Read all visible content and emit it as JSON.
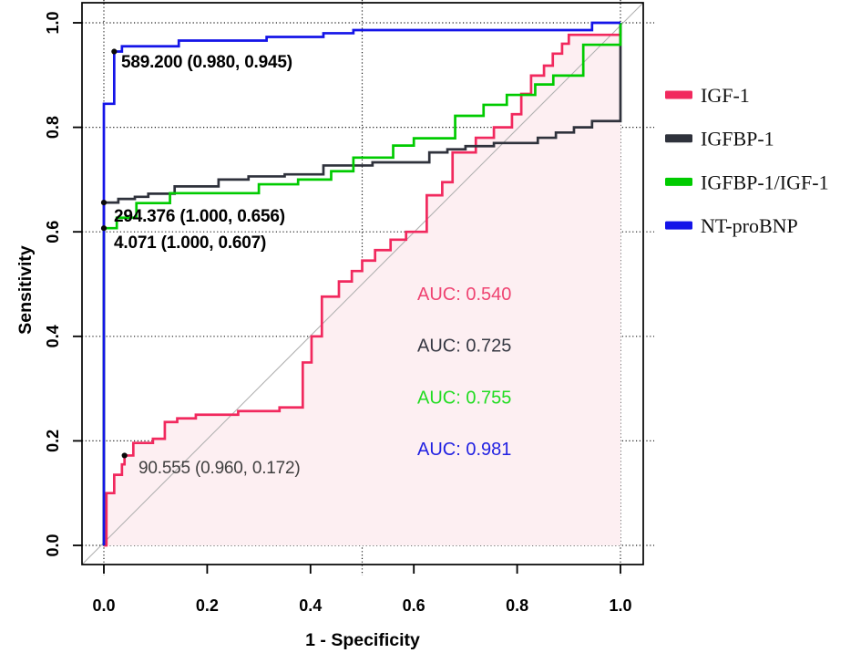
{
  "chart_data": {
    "type": "line",
    "subtype": "roc-step-curves",
    "title": "",
    "xlabel": "1 - Specificity",
    "ylabel": "Sensitivity",
    "xlim": [
      0,
      1
    ],
    "ylim": [
      0,
      1
    ],
    "x_ticks": [
      "0.0",
      "0.2",
      "0.4",
      "0.6",
      "0.8",
      "1.0"
    ],
    "y_ticks": [
      "0.0",
      "0.2",
      "0.4",
      "0.6",
      "0.8",
      "1.0"
    ],
    "grid": {
      "style": "dotted",
      "color": "#1a1a1a",
      "x_lines": [
        0,
        0.5,
        1.0
      ],
      "y_lines": [
        0,
        0.2,
        0.4,
        0.6,
        0.8,
        1.0
      ]
    },
    "diagonal_reference": {
      "present": true,
      "color": "#b0b0b0"
    },
    "fill_under_series": {
      "series": "IGF-1",
      "color": "#fdeff2"
    },
    "series": [
      {
        "name": "IGF-1",
        "color": "#f1295e",
        "auc": 0.54,
        "auc_label": "AUC: 0.540",
        "auc_label_color": "#ef4472",
        "points": [
          [
            0,
            0
          ],
          [
            0.005,
            0
          ],
          [
            0.005,
            0.1
          ],
          [
            0.02,
            0.1
          ],
          [
            0.02,
            0.135
          ],
          [
            0.035,
            0.135
          ],
          [
            0.035,
            0.155
          ],
          [
            0.04,
            0.155
          ],
          [
            0.04,
            0.172
          ],
          [
            0.057,
            0.172
          ],
          [
            0.057,
            0.196
          ],
          [
            0.095,
            0.196
          ],
          [
            0.095,
            0.204
          ],
          [
            0.118,
            0.204
          ],
          [
            0.118,
            0.236
          ],
          [
            0.142,
            0.236
          ],
          [
            0.142,
            0.243
          ],
          [
            0.178,
            0.243
          ],
          [
            0.178,
            0.25
          ],
          [
            0.26,
            0.25
          ],
          [
            0.26,
            0.257
          ],
          [
            0.34,
            0.257
          ],
          [
            0.34,
            0.264
          ],
          [
            0.385,
            0.264
          ],
          [
            0.385,
            0.35
          ],
          [
            0.402,
            0.35
          ],
          [
            0.402,
            0.4
          ],
          [
            0.422,
            0.4
          ],
          [
            0.422,
            0.476
          ],
          [
            0.455,
            0.476
          ],
          [
            0.455,
            0.505
          ],
          [
            0.48,
            0.505
          ],
          [
            0.48,
            0.525
          ],
          [
            0.5,
            0.525
          ],
          [
            0.5,
            0.545
          ],
          [
            0.525,
            0.545
          ],
          [
            0.525,
            0.565
          ],
          [
            0.555,
            0.565
          ],
          [
            0.555,
            0.585
          ],
          [
            0.585,
            0.585
          ],
          [
            0.585,
            0.6
          ],
          [
            0.625,
            0.6
          ],
          [
            0.625,
            0.67
          ],
          [
            0.655,
            0.67
          ],
          [
            0.655,
            0.695
          ],
          [
            0.675,
            0.695
          ],
          [
            0.675,
            0.752
          ],
          [
            0.72,
            0.752
          ],
          [
            0.72,
            0.78
          ],
          [
            0.755,
            0.78
          ],
          [
            0.755,
            0.8
          ],
          [
            0.79,
            0.8
          ],
          [
            0.79,
            0.825
          ],
          [
            0.808,
            0.825
          ],
          [
            0.808,
            0.864
          ],
          [
            0.827,
            0.864
          ],
          [
            0.827,
            0.899
          ],
          [
            0.852,
            0.899
          ],
          [
            0.852,
            0.918
          ],
          [
            0.869,
            0.918
          ],
          [
            0.869,
            0.941
          ],
          [
            0.887,
            0.941
          ],
          [
            0.887,
            0.96
          ],
          [
            0.9,
            0.96
          ],
          [
            0.9,
            0.977
          ],
          [
            1.0,
            0.977
          ],
          [
            1.0,
            1.0
          ]
        ]
      },
      {
        "name": "IGFBP-1",
        "color": "#2f323c",
        "auc": 0.725,
        "auc_label": "AUC: 0.725",
        "auc_label_color": "#363843",
        "points": [
          [
            0,
            0
          ],
          [
            0,
            0.656
          ],
          [
            0.028,
            0.656
          ],
          [
            0.028,
            0.663
          ],
          [
            0.06,
            0.663
          ],
          [
            0.06,
            0.667
          ],
          [
            0.086,
            0.667
          ],
          [
            0.086,
            0.673
          ],
          [
            0.137,
            0.673
          ],
          [
            0.137,
            0.687
          ],
          [
            0.222,
            0.687
          ],
          [
            0.222,
            0.7
          ],
          [
            0.28,
            0.7
          ],
          [
            0.28,
            0.706
          ],
          [
            0.35,
            0.706
          ],
          [
            0.35,
            0.71
          ],
          [
            0.425,
            0.71
          ],
          [
            0.425,
            0.727
          ],
          [
            0.52,
            0.727
          ],
          [
            0.52,
            0.733
          ],
          [
            0.63,
            0.733
          ],
          [
            0.63,
            0.752
          ],
          [
            0.665,
            0.752
          ],
          [
            0.665,
            0.758
          ],
          [
            0.7,
            0.758
          ],
          [
            0.7,
            0.764
          ],
          [
            0.755,
            0.764
          ],
          [
            0.755,
            0.77
          ],
          [
            0.84,
            0.77
          ],
          [
            0.84,
            0.78
          ],
          [
            0.875,
            0.78
          ],
          [
            0.875,
            0.79
          ],
          [
            0.91,
            0.79
          ],
          [
            0.91,
            0.8
          ],
          [
            0.945,
            0.8
          ],
          [
            0.945,
            0.812
          ],
          [
            1.0,
            0.812
          ],
          [
            1.0,
            1.0
          ]
        ]
      },
      {
        "name": "IGFBP-1/IGF-1",
        "color": "#00cb00",
        "auc": 0.755,
        "auc_label": "AUC: 0.755",
        "auc_label_color": "#21dc21",
        "points": [
          [
            0,
            0
          ],
          [
            0,
            0.607
          ],
          [
            0.025,
            0.607
          ],
          [
            0.025,
            0.627
          ],
          [
            0.063,
            0.627
          ],
          [
            0.063,
            0.655
          ],
          [
            0.128,
            0.655
          ],
          [
            0.128,
            0.674
          ],
          [
            0.3,
            0.674
          ],
          [
            0.3,
            0.691
          ],
          [
            0.376,
            0.691
          ],
          [
            0.376,
            0.7
          ],
          [
            0.44,
            0.7
          ],
          [
            0.44,
            0.716
          ],
          [
            0.483,
            0.716
          ],
          [
            0.483,
            0.742
          ],
          [
            0.56,
            0.742
          ],
          [
            0.56,
            0.765
          ],
          [
            0.6,
            0.765
          ],
          [
            0.6,
            0.779
          ],
          [
            0.68,
            0.779
          ],
          [
            0.68,
            0.822
          ],
          [
            0.735,
            0.822
          ],
          [
            0.735,
            0.843
          ],
          [
            0.78,
            0.843
          ],
          [
            0.78,
            0.862
          ],
          [
            0.835,
            0.862
          ],
          [
            0.835,
            0.882
          ],
          [
            0.87,
            0.882
          ],
          [
            0.87,
            0.899
          ],
          [
            0.928,
            0.899
          ],
          [
            0.928,
            0.958
          ],
          [
            1.0,
            0.958
          ],
          [
            1.0,
            1.0
          ]
        ]
      },
      {
        "name": "NT-proBNP",
        "color": "#1414e8",
        "auc": 0.981,
        "auc_label": "AUC: 0.981",
        "auc_label_color": "#2222e2",
        "points": [
          [
            0,
            0
          ],
          [
            0,
            0.845
          ],
          [
            0.02,
            0.845
          ],
          [
            0.02,
            0.945
          ],
          [
            0.035,
            0.945
          ],
          [
            0.035,
            0.955
          ],
          [
            0.145,
            0.955
          ],
          [
            0.145,
            0.966
          ],
          [
            0.315,
            0.966
          ],
          [
            0.315,
            0.973
          ],
          [
            0.425,
            0.973
          ],
          [
            0.425,
            0.98
          ],
          [
            0.483,
            0.98
          ],
          [
            0.483,
            0.986
          ],
          [
            0.945,
            0.986
          ],
          [
            0.945,
            1.0
          ],
          [
            1.0,
            1.0
          ]
        ]
      }
    ],
    "marked_points": [
      {
        "label": "589.200 (0.980, 0.945)",
        "x": 0.02,
        "y": 0.945,
        "series": "NT-proBNP",
        "text_color": "#000000",
        "bold": true
      },
      {
        "label": "294.376 (1.000, 0.656)",
        "x": 0.0,
        "y": 0.656,
        "series": "IGFBP-1",
        "text_color": "#000000",
        "bold": true
      },
      {
        "label": "4.071 (1.000, 0.607)",
        "x": 0.0,
        "y": 0.607,
        "series": "IGFBP-1/IGF-1",
        "text_color": "#000000",
        "bold": true
      },
      {
        "label": "90.555 (0.960, 0.172)",
        "x": 0.04,
        "y": 0.172,
        "series": "IGF-1",
        "text_color": "#3f3f3f",
        "bold": false
      }
    ],
    "legend_position": "right-outside"
  },
  "legend": {
    "items": [
      {
        "label": "IGF-1",
        "color": "#f1295e"
      },
      {
        "label": "IGFBP-1",
        "color": "#2f323c"
      },
      {
        "label": "IGFBP-1/IGF-1",
        "color": "#00cb00"
      },
      {
        "label": "NT-proBNP",
        "color": "#1414e8"
      }
    ]
  }
}
